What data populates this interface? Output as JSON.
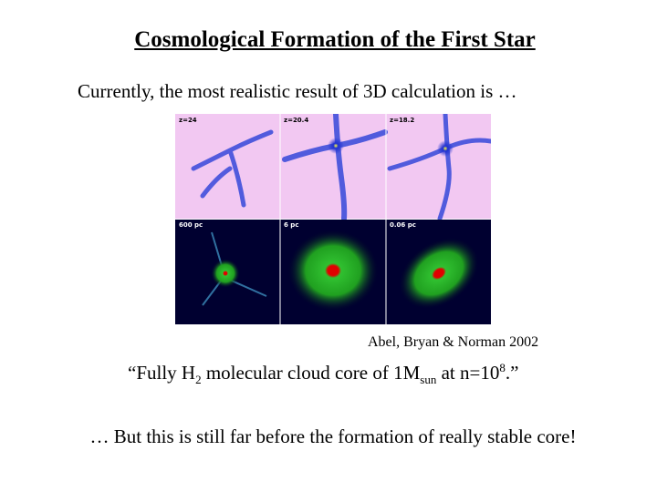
{
  "title": "Cosmological Formation of the First Star",
  "intro": "Currently, the most realistic result of 3D calculation is …",
  "panels": [
    "z=24",
    "z=20.4",
    "z=18.2",
    "600 pc",
    "6 pc",
    "0.06 pc"
  ],
  "citation": "Abel, Bryan & Norman 2002",
  "quote": {
    "part1": "“Fully H",
    "sub1": "2",
    "part2": " molecular cloud core of 1M",
    "sub2": "sun",
    "part3": " at n=10",
    "sup1": "8",
    "part4": ".”"
  },
  "final": "… But this is still far before the formation of really stable core!"
}
